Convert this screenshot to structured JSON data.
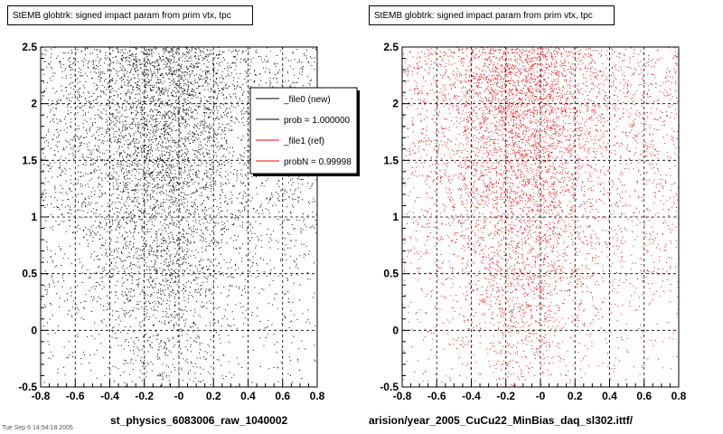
{
  "chart_data": [
    {
      "type": "scatter",
      "title": "StEMB globtrk: signed impact param from prim vtx, tpc",
      "xlabel": "st_physics_6083006_raw_1040002",
      "xlim": [
        -0.8,
        0.8
      ],
      "ylim": [
        -0.5,
        2.5
      ],
      "xticks": [
        "-0.8",
        "-0.6",
        "-0.4",
        "-0.2",
        "-0",
        "0.2",
        "0.4",
        "0.6",
        "0.8"
      ],
      "yticks": [
        "-0.5",
        "0",
        "0.5",
        "1",
        "1.5",
        "2",
        "2.5"
      ],
      "grid": true,
      "color": "#000000",
      "legend": {
        "placement": "top-right",
        "entries": [
          {
            "label": "_file0 (new)",
            "color": "#000000"
          },
          {
            "label": "prob = 1.000000",
            "color": "#000000"
          },
          {
            "label": "_file1 (ref)",
            "color": "#ff0000"
          },
          {
            "label": "probN = 0.99998",
            "color": "#ff0000"
          }
        ]
      }
    },
    {
      "type": "scatter",
      "title": "StEMB globtrk: signed impact param from prim vtx, tpc",
      "xlabel": "arision/year_2005_CuCu22_MinBias_daq_sl302.ittf/",
      "xlim": [
        -0.8,
        0.8
      ],
      "ylim": [
        -0.5,
        2.5
      ],
      "xticks": [
        "-0.8",
        "-0.6",
        "-0.4",
        "-0.2",
        "-0",
        "0.2",
        "0.4",
        "0.6",
        "0.8"
      ],
      "yticks": [
        "-0.5",
        "0",
        "0.5",
        "1",
        "1.5",
        "2",
        "2.5"
      ],
      "grid": true,
      "color": "#ff0000"
    }
  ],
  "footer_stamp": "Tue Sep  6 14:54:18 2005"
}
